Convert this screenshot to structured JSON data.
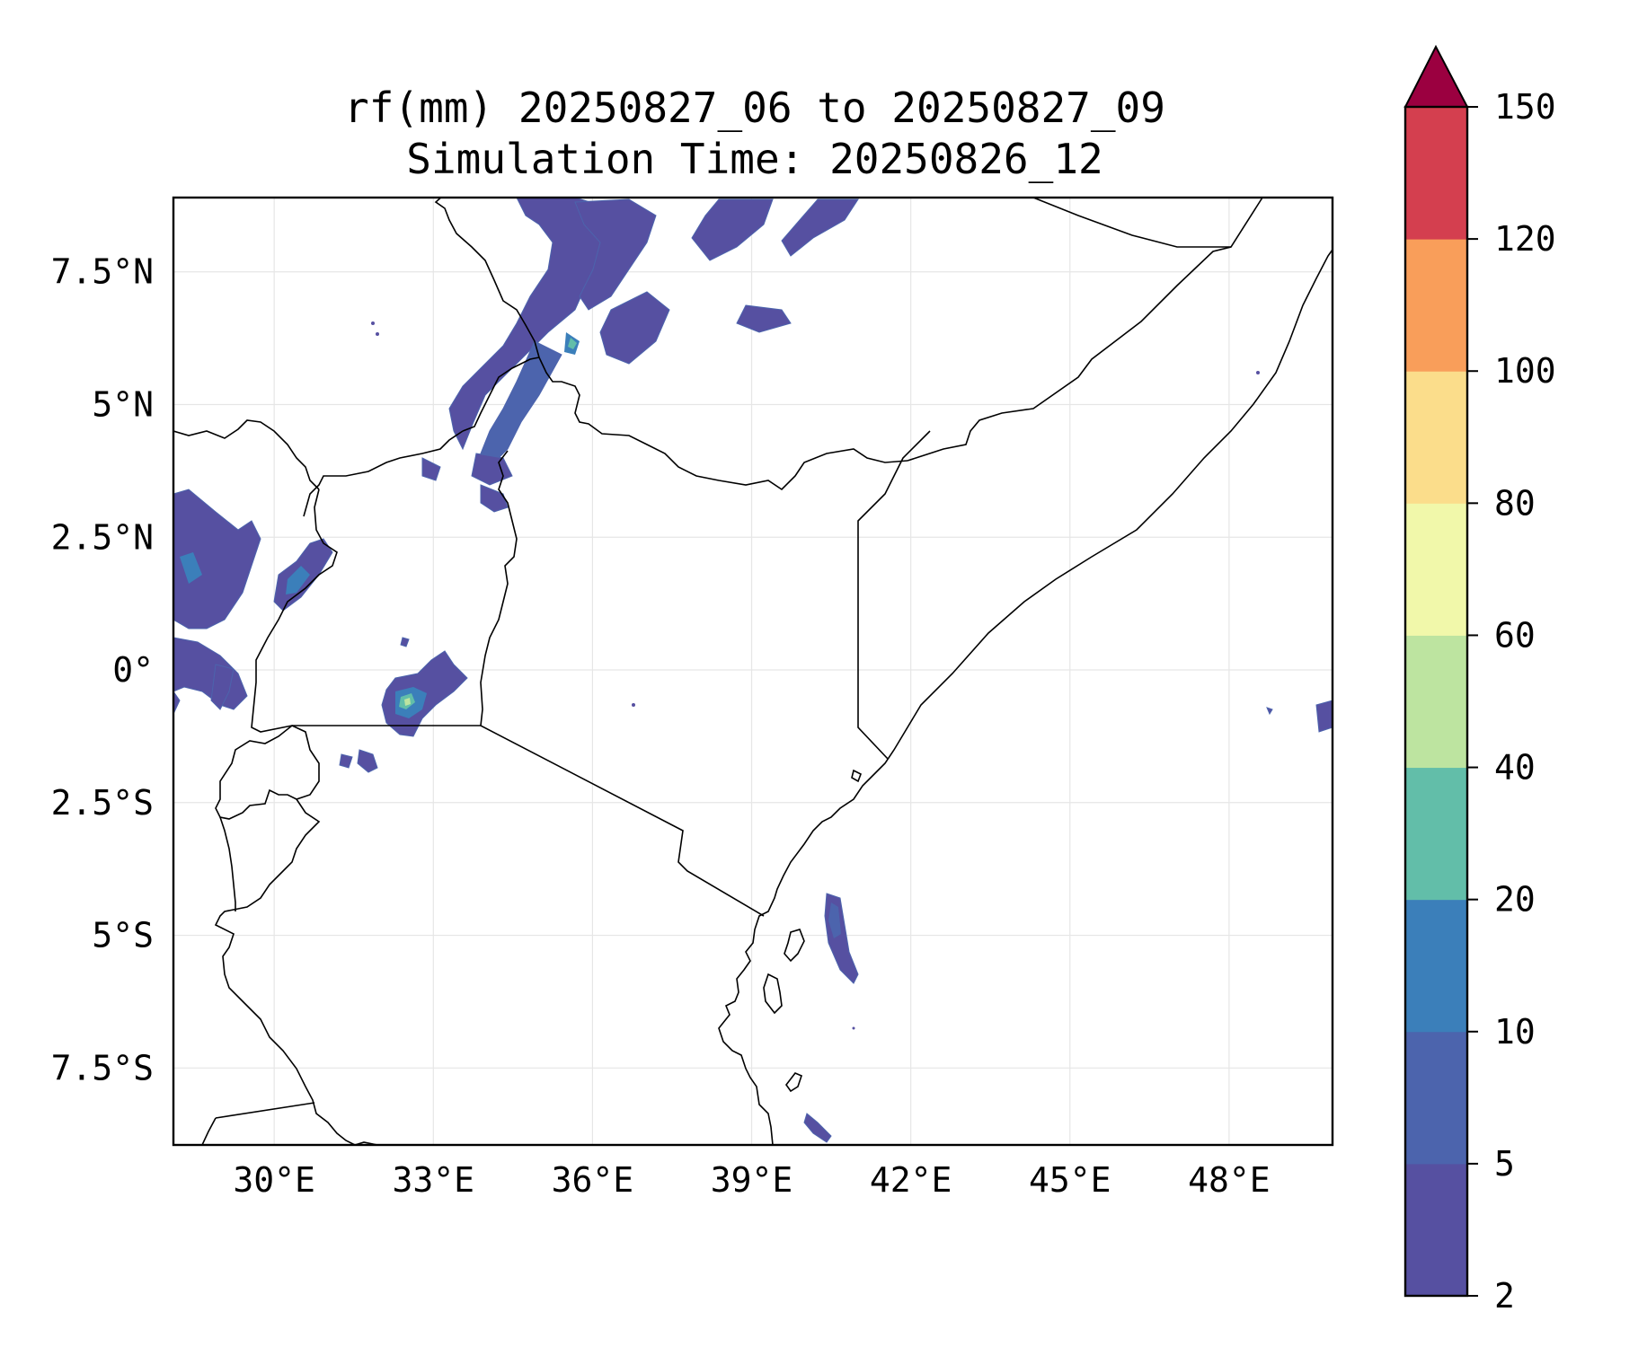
{
  "title": {
    "line1": "rf(mm) 20250827_06 to 20250827_09",
    "line2": "Simulation Time: 20250826_12"
  },
  "map": {
    "extent": {
      "lon_min": 28.1,
      "lon_max": 49.95,
      "lat_min": -8.95,
      "lat_max": 8.9
    },
    "x_ticks": [
      {
        "value": 30,
        "label": "30°E"
      },
      {
        "value": 33,
        "label": "33°E"
      },
      {
        "value": 36,
        "label": "36°E"
      },
      {
        "value": 39,
        "label": "39°E"
      },
      {
        "value": 42,
        "label": "42°E"
      },
      {
        "value": 45,
        "label": "45°E"
      },
      {
        "value": 48,
        "label": "48°E"
      }
    ],
    "y_ticks": [
      {
        "value": 7.5,
        "label": "7.5°N"
      },
      {
        "value": 5,
        "label": "5°N"
      },
      {
        "value": 2.5,
        "label": "2.5°N"
      },
      {
        "value": 0,
        "label": "0°"
      },
      {
        "value": -2.5,
        "label": "2.5°S"
      },
      {
        "value": -5,
        "label": "5°S"
      },
      {
        "value": -7.5,
        "label": "7.5°S"
      }
    ],
    "gridlines": true,
    "colors": {
      "frame": "#000000",
      "gridline": "#e6e6e6",
      "border": "#000000",
      "rain_outline": "#5b6bb0"
    }
  },
  "colorbar": {
    "levels": [
      {
        "label": "2",
        "value": 2
      },
      {
        "label": "5",
        "value": 5
      },
      {
        "label": "10",
        "value": 10
      },
      {
        "label": "20",
        "value": 20
      },
      {
        "label": "40",
        "value": 40
      },
      {
        "label": "60",
        "value": 60
      },
      {
        "label": "80",
        "value": 80
      },
      {
        "label": "100",
        "value": 100
      },
      {
        "label": "120",
        "value": 120
      },
      {
        "label": "150",
        "value": 150
      }
    ],
    "colors": [
      "#5650a1",
      "#4c64ad",
      "#3b7fba",
      "#62bea9",
      "#bde4a0",
      "#f1f8aa",
      "#fbdd8b",
      "#f99e5a",
      "#d43f4f"
    ],
    "extend_color": "#9b0040",
    "extend": "max"
  },
  "chart_data": {
    "type": "heatmap",
    "title": "rf(mm) 20250827_06 to 20250827_09\nSimulation Time: 20250826_12",
    "xlabel": "",
    "ylabel": "",
    "xlim": [
      28.1,
      49.95
    ],
    "ylim": [
      -8.95,
      8.9
    ],
    "x_ticks": [
      "30°E",
      "33°E",
      "36°E",
      "39°E",
      "42°E",
      "45°E",
      "48°E"
    ],
    "y_ticks": [
      "7.5°N",
      "5°N",
      "2.5°N",
      "0°",
      "2.5°S",
      "5°S",
      "7.5°S"
    ],
    "colorbar_levels": [
      2,
      5,
      10,
      20,
      40,
      60,
      80,
      100,
      120,
      150
    ],
    "grid": true
  }
}
